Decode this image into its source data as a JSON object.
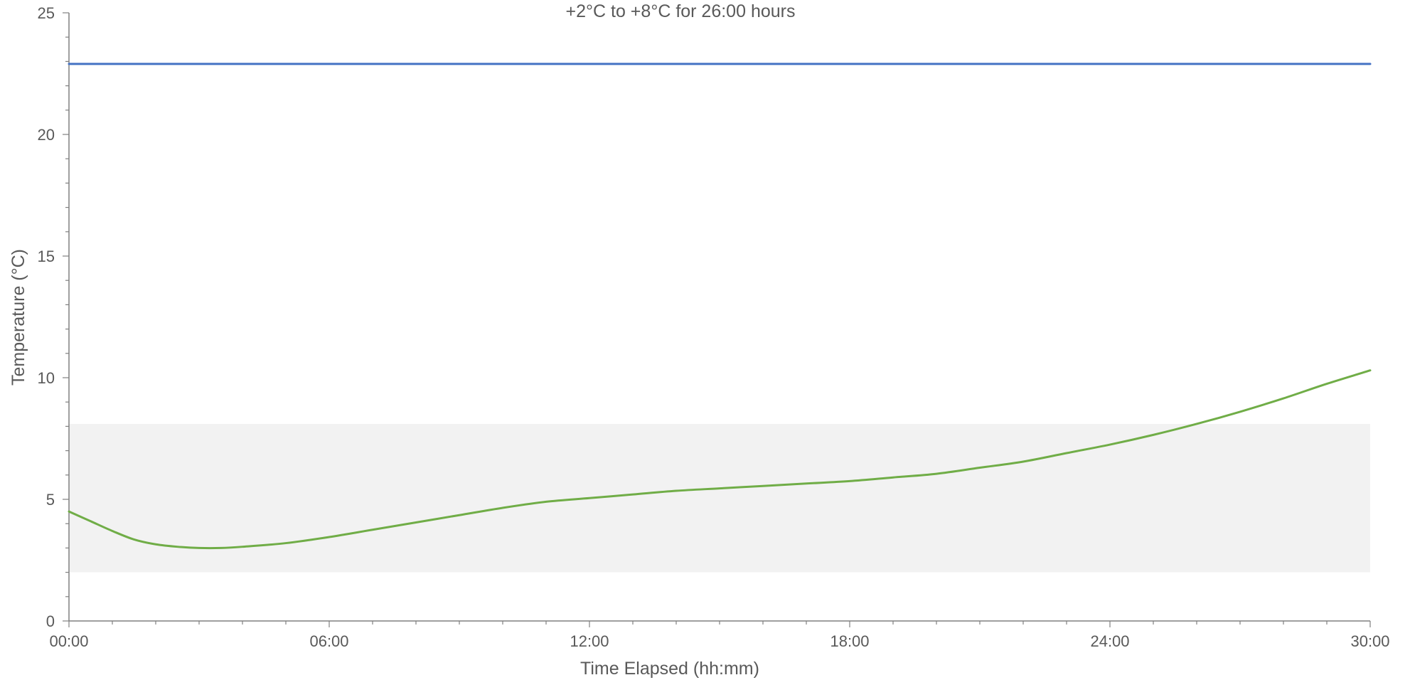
{
  "chart_data": {
    "type": "line",
    "title": "+2°C to +8°C for 26:00 hours",
    "xlabel": "Time Elapsed (hh:mm)",
    "ylabel": "Temperature (°C)",
    "xlim": [
      0,
      30
    ],
    "ylim": [
      0,
      25
    ],
    "x_tick_labels": [
      "00:00",
      "06:00",
      "12:00",
      "18:00",
      "24:00",
      "30:00"
    ],
    "y_tick_labels": [
      "0",
      "5",
      "10",
      "15",
      "20",
      "25"
    ],
    "grid": false,
    "legend": "none",
    "band": {
      "from": 2,
      "to": 8.1,
      "color": "#f2f2f2"
    },
    "series": [
      {
        "color": "#4472c4",
        "x": [
          0,
          30
        ],
        "y": [
          22.9,
          22.9
        ]
      },
      {
        "color": "#70ad47",
        "x": [
          0,
          0.5,
          1,
          1.5,
          2,
          2.5,
          3,
          3.5,
          4,
          5,
          6,
          7,
          8,
          9,
          10,
          11,
          12,
          13,
          14,
          15,
          16,
          17,
          18,
          19,
          20,
          21,
          22,
          23,
          24,
          25,
          26,
          27,
          28,
          29,
          30
        ],
        "y": [
          4.5,
          4.1,
          3.7,
          3.35,
          3.15,
          3.05,
          3.0,
          3.0,
          3.05,
          3.2,
          3.45,
          3.75,
          4.05,
          4.35,
          4.65,
          4.9,
          5.05,
          5.2,
          5.35,
          5.45,
          5.55,
          5.65,
          5.75,
          5.9,
          6.05,
          6.3,
          6.55,
          6.9,
          7.25,
          7.65,
          8.1,
          8.6,
          9.15,
          9.75,
          10.3
        ]
      }
    ]
  }
}
